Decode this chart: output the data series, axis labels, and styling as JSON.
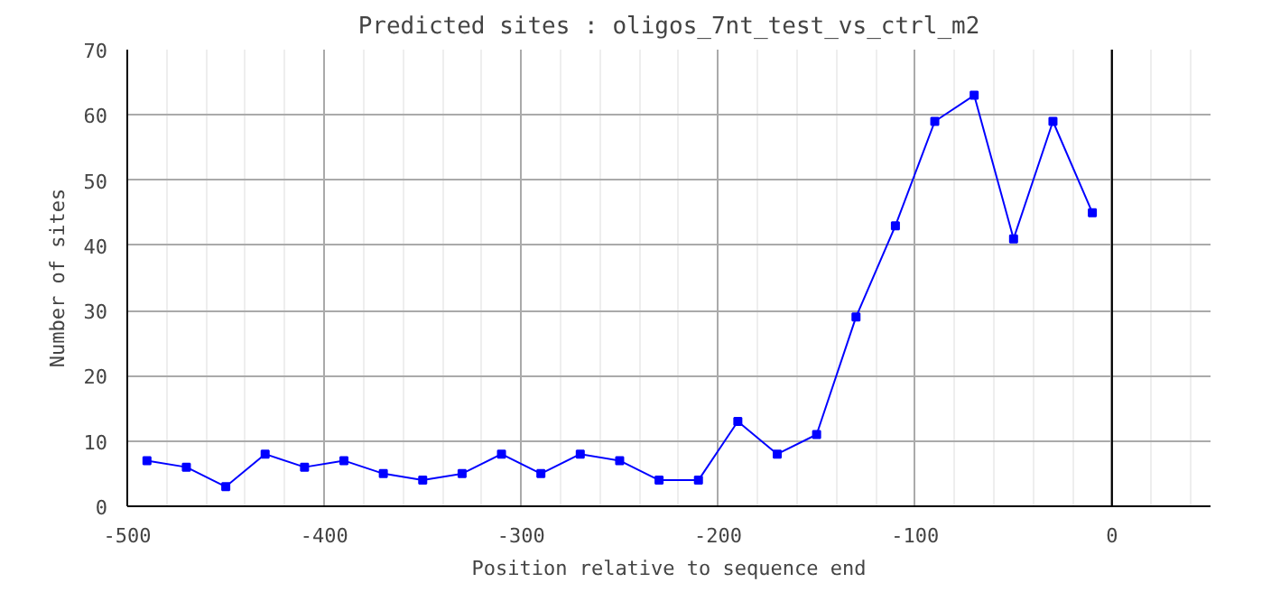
{
  "chart_data": {
    "type": "line",
    "title": "Predicted sites : oligos_7nt_test_vs_ctrl_m2",
    "xlabel": "Position relative to sequence end",
    "ylabel": "Number of sites",
    "x": [
      -490,
      -470,
      -450,
      -430,
      -410,
      -390,
      -370,
      -350,
      -330,
      -310,
      -290,
      -270,
      -250,
      -230,
      -210,
      -190,
      -170,
      -150,
      -130,
      -110,
      -90,
      -70,
      -50,
      -30,
      -10
    ],
    "series": [
      {
        "color": "#0000ff",
        "values": [
          7,
          6,
          3,
          8,
          6,
          7,
          5,
          4,
          5,
          8,
          5,
          8,
          7,
          4,
          4,
          13,
          8,
          11,
          29,
          43,
          59,
          63,
          41,
          59,
          45
        ]
      }
    ],
    "xlim": [
      -500,
      50
    ],
    "xticks": [
      -500,
      -400,
      -300,
      -200,
      -100,
      0
    ],
    "ylim": [
      0,
      70
    ],
    "yticks": [
      0,
      10,
      20,
      30,
      40,
      50,
      60,
      70
    ],
    "ref_lines": [
      {
        "axis": "x",
        "value": 0,
        "color": "#000000"
      }
    ],
    "grid": true,
    "marker": "square",
    "line_style": "solid"
  }
}
